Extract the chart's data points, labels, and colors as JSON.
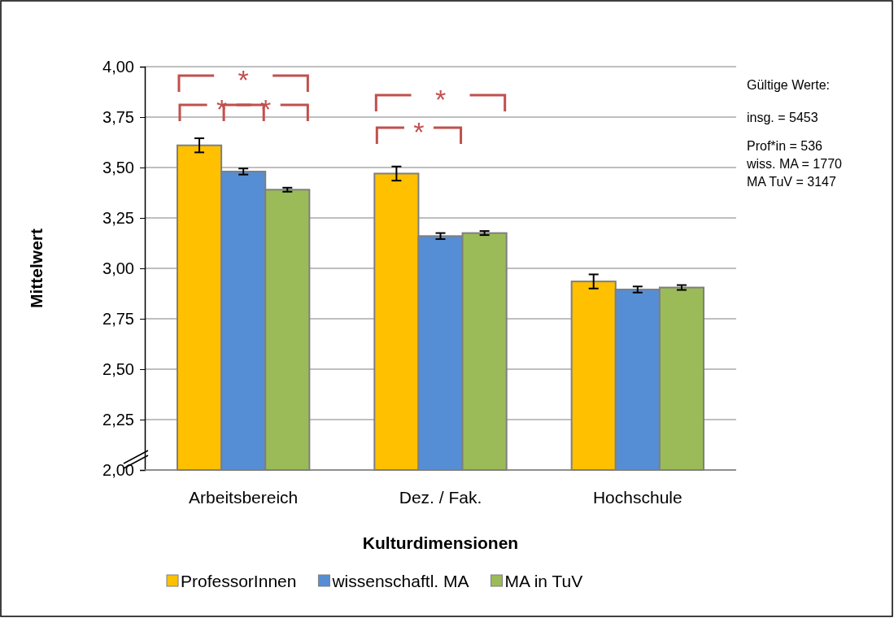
{
  "chart_data": {
    "type": "bar",
    "xlabel": "Kulturdimensionen",
    "ylabel": "Mittelwert",
    "categories": [
      "Arbeitsbereich",
      "Dez. / Fak.",
      "Hochschule"
    ],
    "series": [
      {
        "name": "ProfessorInnen",
        "color": "#ffc000",
        "values": [
          3.61,
          3.47,
          2.935
        ],
        "errors": [
          0.035,
          0.035,
          0.035
        ]
      },
      {
        "name": "wissenschaftl. MA",
        "color": "#558ed5",
        "values": [
          3.48,
          3.16,
          2.895
        ],
        "errors": [
          0.015,
          0.015,
          0.015
        ]
      },
      {
        "name": "MA in TuV",
        "color": "#9bbb59",
        "values": [
          3.39,
          3.175,
          2.905
        ],
        "errors": [
          0.01,
          0.01,
          0.012
        ]
      }
    ],
    "ylim": [
      2,
      4
    ],
    "yticks": [
      {
        "value": 2,
        "label": "2,00"
      },
      {
        "value": 2.25,
        "label": "2,25"
      },
      {
        "value": 2.5,
        "label": "2,50"
      },
      {
        "value": 2.75,
        "label": "2,75"
      },
      {
        "value": 3,
        "label": "3,00"
      },
      {
        "value": 3.25,
        "label": "3,25"
      },
      {
        "value": 3.5,
        "label": "3,50"
      },
      {
        "value": 3.75,
        "label": "3,75"
      },
      {
        "value": 4,
        "label": "4,00"
      }
    ],
    "grid": "y",
    "legend": "bottom",
    "annotations": [
      "*",
      "*",
      "*",
      "*",
      "*",
      "Gültige Werte:",
      "insg. = 5453",
      "Prof*in = 536",
      "wiss. MA = 1770",
      "MA TuV = 3147"
    ]
  }
}
